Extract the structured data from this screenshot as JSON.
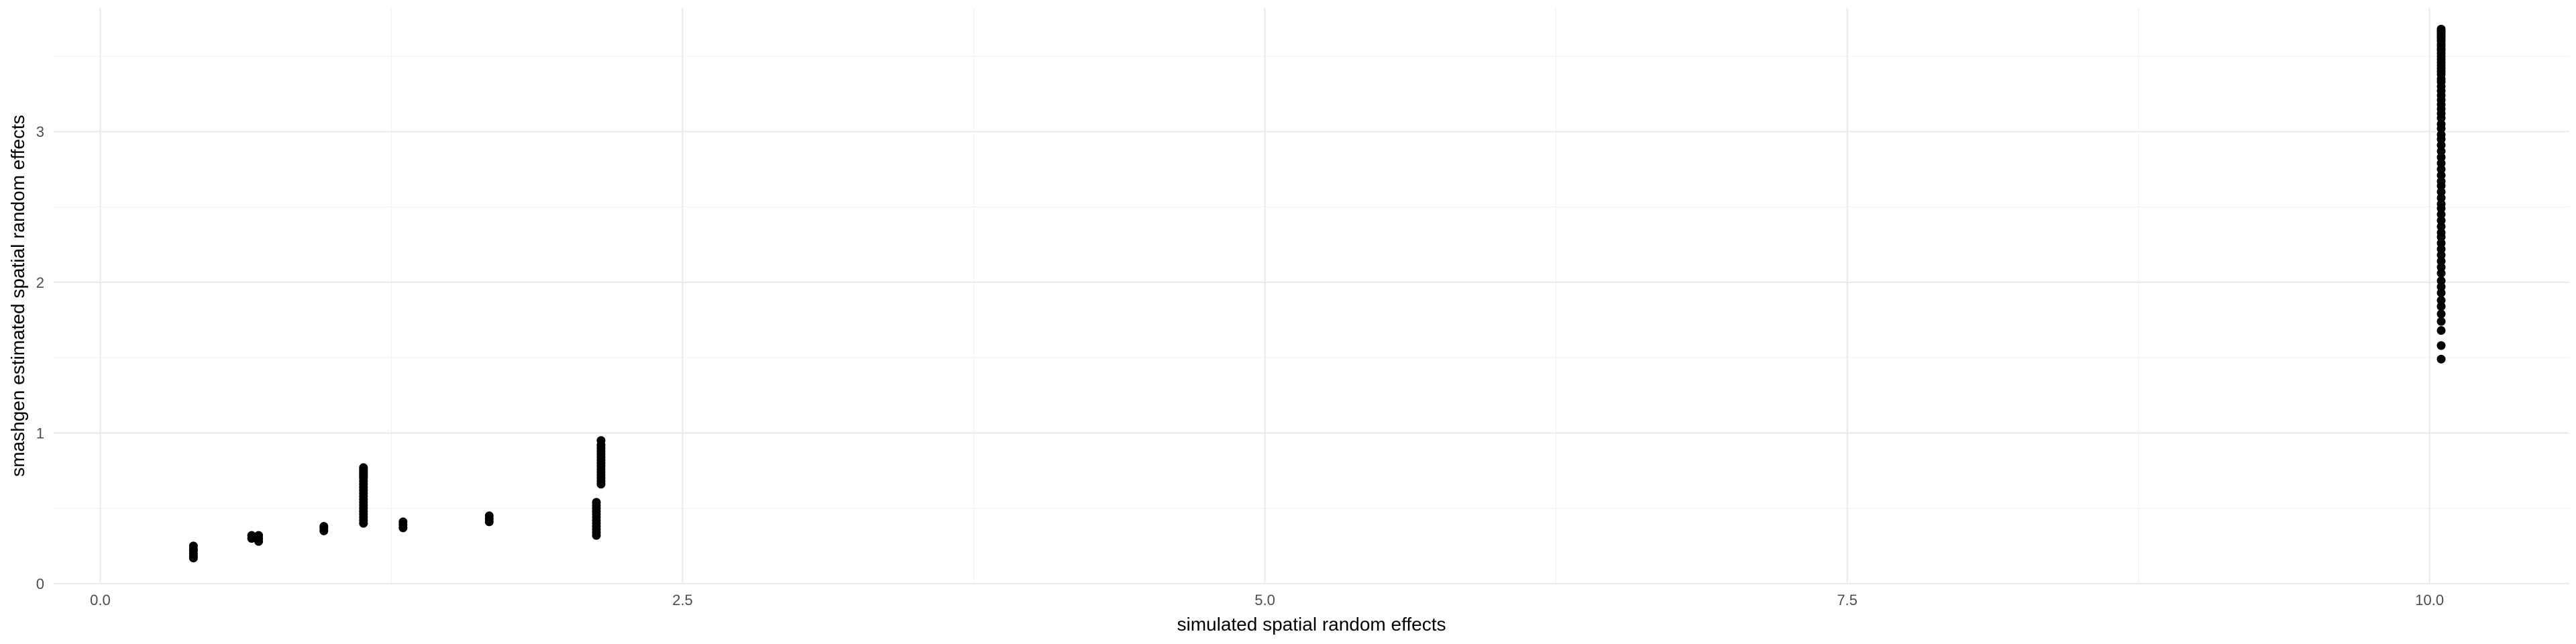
{
  "chart_data": {
    "type": "scatter",
    "title": "",
    "xlabel": "simulated spatial random effects",
    "ylabel": "smashgen estimated spatial random effects",
    "xlim": [
      -0.2,
      10.6
    ],
    "ylim": [
      0,
      3.82
    ],
    "x_ticks": [
      0.0,
      2.5,
      5.0,
      7.5,
      10.0
    ],
    "x_tick_labels": [
      "0.0",
      "2.5",
      "5.0",
      "7.5",
      "10.0"
    ],
    "y_ticks": [
      0,
      1,
      2,
      3
    ],
    "y_tick_labels": [
      "0",
      "1",
      "2",
      "3"
    ],
    "grid": true,
    "legend": "none",
    "point_color": "#000000",
    "x": [
      0.4,
      0.4,
      0.4,
      0.4,
      0.4,
      0.4,
      0.65,
      0.65,
      0.68,
      0.68,
      0.68,
      0.96,
      0.96,
      0.96,
      1.13,
      1.13,
      1.13,
      1.13,
      1.13,
      1.13,
      1.13,
      1.13,
      1.13,
      1.13,
      1.13,
      1.13,
      1.13,
      1.13,
      1.13,
      1.13,
      1.13,
      1.13,
      1.13,
      1.13,
      1.13,
      1.13,
      1.13,
      1.3,
      1.3,
      1.3,
      1.67,
      1.67,
      1.67,
      2.13,
      2.13,
      2.13,
      2.13,
      2.13,
      2.13,
      2.13,
      2.13,
      2.13,
      2.13,
      2.13,
      2.13,
      2.15,
      2.15,
      2.15,
      2.15,
      2.15,
      2.15,
      2.15,
      2.15,
      2.15,
      2.15,
      2.15,
      2.15,
      2.15,
      2.15,
      2.15,
      10.05,
      10.05,
      10.05,
      10.05,
      10.05,
      10.05,
      10.05,
      10.05,
      10.05,
      10.05,
      10.05,
      10.05,
      10.05,
      10.05,
      10.05,
      10.05,
      10.05,
      10.05,
      10.05,
      10.05,
      10.05,
      10.05,
      10.05,
      10.05,
      10.05,
      10.05,
      10.05,
      10.05,
      10.05,
      10.05,
      10.05,
      10.05,
      10.05,
      10.05,
      10.05,
      10.05,
      10.05,
      10.05,
      10.05,
      10.05,
      10.05,
      10.05,
      10.05,
      10.05,
      10.05,
      10.05,
      10.05,
      10.05,
      10.05,
      10.05,
      10.05,
      10.05,
      10.05,
      10.05,
      10.05,
      10.05,
      10.05,
      10.05,
      10.05,
      10.05,
      10.05,
      10.05,
      10.05,
      10.05,
      10.05,
      10.05,
      10.05,
      10.05,
      10.05,
      10.05
    ],
    "y": [
      0.17,
      0.18,
      0.2,
      0.22,
      0.23,
      0.25,
      0.3,
      0.32,
      0.28,
      0.3,
      0.32,
      0.35,
      0.37,
      0.38,
      0.4,
      0.42,
      0.44,
      0.46,
      0.48,
      0.5,
      0.52,
      0.54,
      0.56,
      0.58,
      0.6,
      0.62,
      0.64,
      0.66,
      0.68,
      0.7,
      0.71,
      0.72,
      0.73,
      0.74,
      0.75,
      0.76,
      0.77,
      0.37,
      0.39,
      0.41,
      0.41,
      0.43,
      0.45,
      0.32,
      0.34,
      0.36,
      0.38,
      0.4,
      0.42,
      0.44,
      0.46,
      0.48,
      0.5,
      0.52,
      0.54,
      0.66,
      0.68,
      0.7,
      0.72,
      0.74,
      0.76,
      0.78,
      0.8,
      0.82,
      0.84,
      0.86,
      0.88,
      0.9,
      0.92,
      0.95,
      1.49,
      1.58,
      1.68,
      1.74,
      1.79,
      1.84,
      1.88,
      1.93,
      1.97,
      2.01,
      2.06,
      2.1,
      2.14,
      2.18,
      2.22,
      2.26,
      2.3,
      2.33,
      2.37,
      2.41,
      2.45,
      2.49,
      2.52,
      2.56,
      2.6,
      2.64,
      2.67,
      2.71,
      2.75,
      2.79,
      2.83,
      2.87,
      2.91,
      2.95,
      2.98,
      3.02,
      3.05,
      3.09,
      3.12,
      3.15,
      3.18,
      3.21,
      3.24,
      3.27,
      3.3,
      3.33,
      3.35,
      3.38,
      3.4,
      3.42,
      3.44,
      3.46,
      3.48,
      3.5,
      3.52,
      3.54,
      3.55,
      3.57,
      3.58,
      3.6,
      3.61,
      3.62,
      3.63,
      3.64,
      3.65,
      3.66,
      3.67,
      3.67,
      3.68,
      3.68
    ]
  }
}
